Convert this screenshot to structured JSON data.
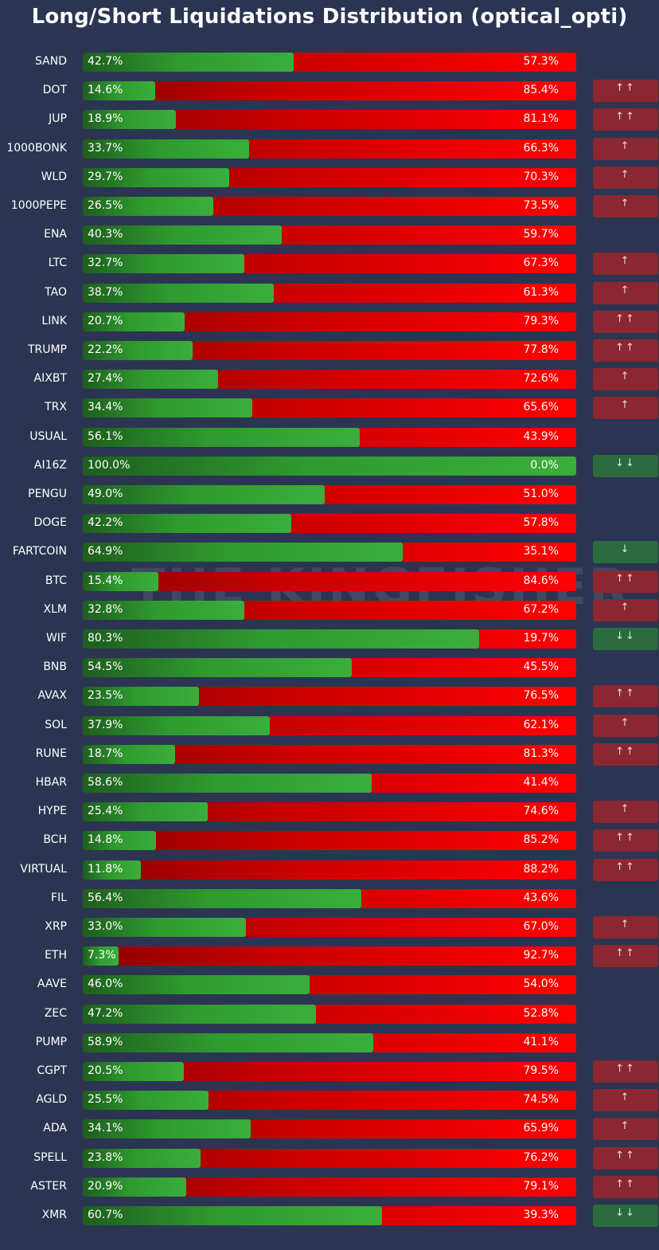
{
  "title": "Long/Short Liquidations Distribution (optical_opti)",
  "watermark": "THE KINGFISHER",
  "colors": {
    "background": "#2b3552",
    "long": "#3aae3a",
    "short": "#ff0000",
    "signal_up": "#8b2730",
    "signal_down": "#2a6b3d"
  },
  "chart_data": {
    "type": "bar",
    "orientation": "horizontal-stacked-100",
    "title": "Long/Short Liquidations Distribution (optical_opti)",
    "series_names": [
      "Long",
      "Short"
    ],
    "rows": [
      {
        "symbol": "SAND",
        "long_label": "42.7%",
        "short_label": "57.3%",
        "long": 42.7,
        "signal": ""
      },
      {
        "symbol": "DOT",
        "long_label": "14.6%",
        "short_label": "85.4%",
        "long": 14.6,
        "signal": "↑↑"
      },
      {
        "symbol": "JUP",
        "long_label": "18.9%",
        "short_label": "81.1%",
        "long": 18.9,
        "signal": "↑↑"
      },
      {
        "symbol": "1000BONK",
        "long_label": "33.7%",
        "short_label": "66.3%",
        "long": 33.7,
        "signal": "↑"
      },
      {
        "symbol": "WLD",
        "long_label": "29.7%",
        "short_label": "70.3%",
        "long": 29.7,
        "signal": "↑"
      },
      {
        "symbol": "1000PEPE",
        "long_label": "26.5%",
        "short_label": "73.5%",
        "long": 26.5,
        "signal": "↑"
      },
      {
        "symbol": "ENA",
        "long_label": "40.3%",
        "short_label": "59.7%",
        "long": 40.3,
        "signal": ""
      },
      {
        "symbol": "LTC",
        "long_label": "32.7%",
        "short_label": "67.3%",
        "long": 32.7,
        "signal": "↑"
      },
      {
        "symbol": "TAO",
        "long_label": "38.7%",
        "short_label": "61.3%",
        "long": 38.7,
        "signal": "↑"
      },
      {
        "symbol": "LINK",
        "long_label": "20.7%",
        "short_label": "79.3%",
        "long": 20.7,
        "signal": "↑↑"
      },
      {
        "symbol": "TRUMP",
        "long_label": "22.2%",
        "short_label": "77.8%",
        "long": 22.2,
        "signal": "↑↑"
      },
      {
        "symbol": "AIXBT",
        "long_label": "27.4%",
        "short_label": "72.6%",
        "long": 27.4,
        "signal": "↑"
      },
      {
        "symbol": "TRX",
        "long_label": "34.4%",
        "short_label": "65.6%",
        "long": 34.4,
        "signal": "↑"
      },
      {
        "symbol": "USUAL",
        "long_label": "56.1%",
        "short_label": "43.9%",
        "long": 56.1,
        "signal": ""
      },
      {
        "symbol": "AI16Z",
        "long_label": "100.0%",
        "short_label": "0.0%",
        "long": 100.0,
        "signal": "↓↓"
      },
      {
        "symbol": "PENGU",
        "long_label": "49.0%",
        "short_label": "51.0%",
        "long": 49.0,
        "signal": ""
      },
      {
        "symbol": "DOGE",
        "long_label": "42.2%",
        "short_label": "57.8%",
        "long": 42.2,
        "signal": ""
      },
      {
        "symbol": "FARTCOIN",
        "long_label": "64.9%",
        "short_label": "35.1%",
        "long": 64.9,
        "signal": "↓"
      },
      {
        "symbol": "BTC",
        "long_label": "15.4%",
        "short_label": "84.6%",
        "long": 15.4,
        "signal": "↑↑"
      },
      {
        "symbol": "XLM",
        "long_label": "32.8%",
        "short_label": "67.2%",
        "long": 32.8,
        "signal": "↑"
      },
      {
        "symbol": "WIF",
        "long_label": "80.3%",
        "short_label": "19.7%",
        "long": 80.3,
        "signal": "↓↓"
      },
      {
        "symbol": "BNB",
        "long_label": "54.5%",
        "short_label": "45.5%",
        "long": 54.5,
        "signal": ""
      },
      {
        "symbol": "AVAX",
        "long_label": "23.5%",
        "short_label": "76.5%",
        "long": 23.5,
        "signal": "↑↑"
      },
      {
        "symbol": "SOL",
        "long_label": "37.9%",
        "short_label": "62.1%",
        "long": 37.9,
        "signal": "↑"
      },
      {
        "symbol": "RUNE",
        "long_label": "18.7%",
        "short_label": "81.3%",
        "long": 18.7,
        "signal": "↑↑"
      },
      {
        "symbol": "HBAR",
        "long_label": "58.6%",
        "short_label": "41.4%",
        "long": 58.6,
        "signal": ""
      },
      {
        "symbol": "HYPE",
        "long_label": "25.4%",
        "short_label": "74.6%",
        "long": 25.4,
        "signal": "↑"
      },
      {
        "symbol": "BCH",
        "long_label": "14.8%",
        "short_label": "85.2%",
        "long": 14.8,
        "signal": "↑↑"
      },
      {
        "symbol": "VIRTUAL",
        "long_label": "11.8%",
        "short_label": "88.2%",
        "long": 11.8,
        "signal": "↑↑"
      },
      {
        "symbol": "FIL",
        "long_label": "56.4%",
        "short_label": "43.6%",
        "long": 56.4,
        "signal": ""
      },
      {
        "symbol": "XRP",
        "long_label": "33.0%",
        "short_label": "67.0%",
        "long": 33.0,
        "signal": "↑"
      },
      {
        "symbol": "ETH",
        "long_label": "7.3%",
        "short_label": "92.7%",
        "long": 7.3,
        "signal": "↑↑"
      },
      {
        "symbol": "AAVE",
        "long_label": "46.0%",
        "short_label": "54.0%",
        "long": 46.0,
        "signal": ""
      },
      {
        "symbol": "ZEC",
        "long_label": "47.2%",
        "short_label": "52.8%",
        "long": 47.2,
        "signal": ""
      },
      {
        "symbol": "PUMP",
        "long_label": "58.9%",
        "short_label": "41.1%",
        "long": 58.9,
        "signal": ""
      },
      {
        "symbol": "CGPT",
        "long_label": "20.5%",
        "short_label": "79.5%",
        "long": 20.5,
        "signal": "↑↑"
      },
      {
        "symbol": "AGLD",
        "long_label": "25.5%",
        "short_label": "74.5%",
        "long": 25.5,
        "signal": "↑"
      },
      {
        "symbol": "ADA",
        "long_label": "34.1%",
        "short_label": "65.9%",
        "long": 34.1,
        "signal": "↑"
      },
      {
        "symbol": "SPELL",
        "long_label": "23.8%",
        "short_label": "76.2%",
        "long": 23.8,
        "signal": "↑↑"
      },
      {
        "symbol": "ASTER",
        "long_label": "20.9%",
        "short_label": "79.1%",
        "long": 20.9,
        "signal": "↑↑"
      },
      {
        "symbol": "XMR",
        "long_label": "60.7%",
        "short_label": "39.3%",
        "long": 60.7,
        "signal": "↓↓"
      }
    ]
  }
}
